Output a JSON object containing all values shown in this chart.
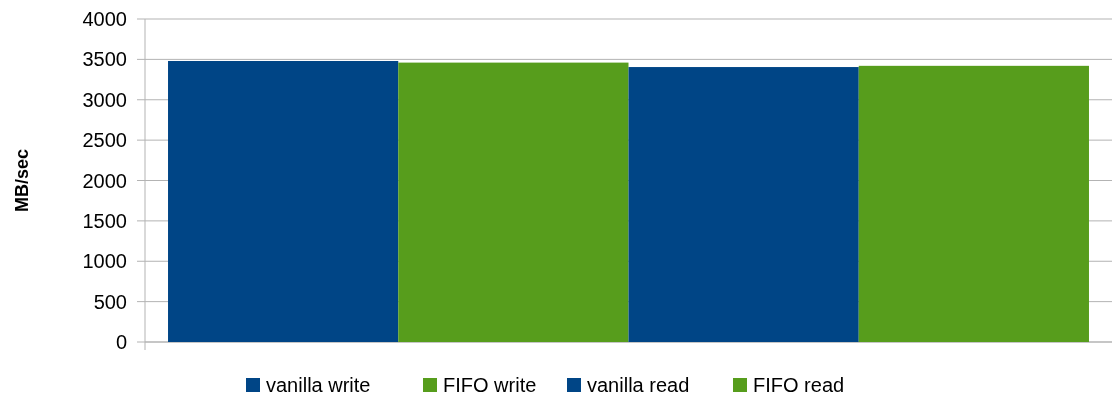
{
  "chart_data": {
    "type": "bar",
    "ylabel": "MB/sec",
    "categories": [
      null
    ],
    "series": [
      {
        "name": "vanilla write",
        "color": "#004586",
        "values": [
          3480
        ]
      },
      {
        "name": "FIFO write",
        "color": "#579d1c",
        "values": [
          3460
        ]
      },
      {
        "name": "vanilla read",
        "color": "#004586",
        "values": [
          3405
        ]
      },
      {
        "name": "FIFO read",
        "color": "#579d1c",
        "values": [
          3420
        ]
      }
    ],
    "ylim": [
      0,
      4000
    ],
    "yticks": [
      0,
      500,
      1000,
      1500,
      2000,
      2500,
      3000,
      3500,
      4000
    ],
    "grid": "y",
    "legend": "bottom"
  }
}
